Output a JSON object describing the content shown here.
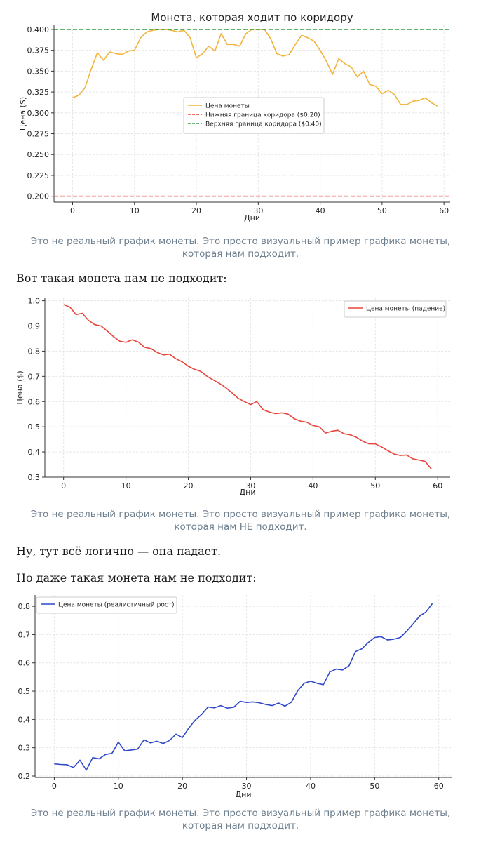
{
  "colors": {
    "yellow": "#f2b43a",
    "red": "#e8453c",
    "green": "#2e9e3e",
    "blue": "#2f49c8",
    "caption": "#6e7f8e",
    "text": "#1a1a1a"
  },
  "captions": {
    "c1_line1": "Это не реальный график монеты. Это просто визуальный пример графика монеты,",
    "c1_line2": "которая нам подходит.",
    "c2_line1": "Это не реальный график монеты. Это просто визуальный пример графика монеты,",
    "c2_line2": "которая нам НЕ подходит.",
    "c3_line1": "Это не реальный график монеты. Это просто визуальный пример графика монеты,",
    "c3_line2": "которая нам подходит."
  },
  "paragraphs": {
    "p1": "Вот такая монета нам не подходит:",
    "p2": "Ну, тут всё логично — она падает.",
    "p3": "Но даже такая монета нам не подходит:"
  },
  "chart_data": [
    {
      "type": "line",
      "title": "Монета, которая ходит по коридору",
      "xlabel": "Дни",
      "ylabel": "Цена ($)",
      "xlim": [
        -3,
        61
      ],
      "ylim": [
        0.193,
        0.405
      ],
      "xticks": [
        0,
        10,
        20,
        30,
        40,
        50,
        60
      ],
      "yticks": [
        0.2,
        0.225,
        0.25,
        0.275,
        0.3,
        0.325,
        0.35,
        0.375,
        0.4
      ],
      "ytick_labels": [
        "0.200",
        "0.225",
        "0.250",
        "0.275",
        "0.300",
        "0.325",
        "0.350",
        "0.375",
        "0.400"
      ],
      "legend": "center",
      "series": [
        {
          "name": "Цена монеты",
          "color": "#f2b43a",
          "dash": false,
          "x": [
            0,
            1,
            2,
            3,
            4,
            5,
            6,
            7,
            8,
            9,
            10,
            11,
            12,
            13,
            14,
            15,
            16,
            17,
            18,
            19,
            20,
            21,
            22,
            23,
            24,
            25,
            26,
            27,
            28,
            29,
            30,
            31,
            32,
            33,
            34,
            35,
            36,
            37,
            38,
            39,
            40,
            41,
            42,
            43,
            44,
            45,
            46,
            47,
            48,
            49,
            50,
            51,
            52,
            53,
            54,
            55,
            56,
            57,
            58,
            59
          ],
          "values": [
            0.318,
            0.321,
            0.33,
            0.352,
            0.372,
            0.363,
            0.373,
            0.371,
            0.37,
            0.374,
            0.375,
            0.39,
            0.397,
            0.399,
            0.4,
            0.4,
            0.399,
            0.397,
            0.399,
            0.39,
            0.366,
            0.371,
            0.38,
            0.374,
            0.395,
            0.382,
            0.382,
            0.38,
            0.395,
            0.4,
            0.4,
            0.4,
            0.389,
            0.371,
            0.368,
            0.37,
            0.382,
            0.393,
            0.39,
            0.386,
            0.375,
            0.362,
            0.346,
            0.365,
            0.359,
            0.355,
            0.343,
            0.35,
            0.334,
            0.332,
            0.323,
            0.327,
            0.322,
            0.31,
            0.31,
            0.314,
            0.315,
            0.318,
            0.312,
            0.308
          ]
        },
        {
          "name": "Нижняя граница коридора ($0.20)",
          "color": "#e8453c",
          "dash": true,
          "hline": 0.2
        },
        {
          "name": "Верхняя граница коридора ($0.40)",
          "color": "#2e9e3e",
          "dash": true,
          "hline": 0.4
        }
      ]
    },
    {
      "type": "line",
      "title": "",
      "xlabel": "Дни",
      "ylabel": "Цена ($)",
      "xlim": [
        -3,
        62
      ],
      "ylim": [
        0.3,
        1.01
      ],
      "xticks": [
        0,
        10,
        20,
        30,
        40,
        50,
        60
      ],
      "yticks": [
        0.3,
        0.4,
        0.5,
        0.6,
        0.7,
        0.8,
        0.9,
        1.0
      ],
      "ytick_labels": [
        "0.3",
        "0.4",
        "0.5",
        "0.6",
        "0.7",
        "0.8",
        "0.9",
        "1.0"
      ],
      "legend": "top-right",
      "series": [
        {
          "name": "Цена монеты (падение)",
          "color": "#e8453c",
          "dash": false,
          "x": [
            0,
            1,
            2,
            3,
            4,
            5,
            6,
            7,
            8,
            9,
            10,
            11,
            12,
            13,
            14,
            15,
            16,
            17,
            18,
            19,
            20,
            21,
            22,
            23,
            24,
            25,
            26,
            27,
            28,
            29,
            30,
            31,
            32,
            33,
            34,
            35,
            36,
            37,
            38,
            39,
            40,
            41,
            42,
            43,
            44,
            45,
            46,
            47,
            48,
            49,
            50,
            51,
            52,
            53,
            54,
            55,
            56,
            57,
            58,
            59
          ],
          "values": [
            0.985,
            0.975,
            0.945,
            0.95,
            0.922,
            0.905,
            0.9,
            0.88,
            0.858,
            0.84,
            0.835,
            0.845,
            0.836,
            0.815,
            0.81,
            0.795,
            0.785,
            0.788,
            0.77,
            0.758,
            0.74,
            0.728,
            0.72,
            0.7,
            0.686,
            0.672,
            0.655,
            0.635,
            0.613,
            0.6,
            0.588,
            0.6,
            0.568,
            0.558,
            0.552,
            0.555,
            0.55,
            0.532,
            0.522,
            0.518,
            0.505,
            0.5,
            0.475,
            0.482,
            0.486,
            0.472,
            0.468,
            0.458,
            0.442,
            0.432,
            0.432,
            0.42,
            0.405,
            0.392,
            0.386,
            0.388,
            0.373,
            0.368,
            0.362,
            0.332
          ]
        }
      ]
    },
    {
      "type": "line",
      "title": "",
      "xlabel": "Дни",
      "ylabel": "",
      "xlim": [
        -3,
        62
      ],
      "ylim": [
        0.195,
        0.84
      ],
      "xticks": [
        0,
        10,
        20,
        30,
        40,
        50,
        60
      ],
      "yticks": [
        0.2,
        0.3,
        0.4,
        0.5,
        0.6,
        0.7,
        0.8
      ],
      "ytick_labels": [
        "0.2",
        "0.3",
        "0.4",
        "0.5",
        "0.6",
        "0.7",
        "0.8"
      ],
      "legend": "top-left",
      "series": [
        {
          "name": "Цена монеты (реалистичный рост)",
          "color": "#2f49c8",
          "dash": false,
          "x": [
            0,
            1,
            2,
            3,
            4,
            5,
            6,
            7,
            8,
            9,
            10,
            11,
            12,
            13,
            14,
            15,
            16,
            17,
            18,
            19,
            20,
            21,
            22,
            23,
            24,
            25,
            26,
            27,
            28,
            29,
            30,
            31,
            32,
            33,
            34,
            35,
            36,
            37,
            38,
            39,
            40,
            41,
            42,
            43,
            44,
            45,
            46,
            47,
            48,
            49,
            50,
            51,
            52,
            53,
            54,
            55,
            56,
            57,
            58,
            59
          ],
          "values": [
            0.243,
            0.241,
            0.24,
            0.23,
            0.256,
            0.221,
            0.265,
            0.261,
            0.276,
            0.28,
            0.32,
            0.289,
            0.292,
            0.295,
            0.328,
            0.317,
            0.323,
            0.315,
            0.326,
            0.348,
            0.336,
            0.37,
            0.398,
            0.418,
            0.444,
            0.441,
            0.449,
            0.44,
            0.443,
            0.464,
            0.46,
            0.462,
            0.459,
            0.453,
            0.449,
            0.458,
            0.447,
            0.461,
            0.502,
            0.528,
            0.535,
            0.528,
            0.523,
            0.568,
            0.578,
            0.575,
            0.59,
            0.64,
            0.65,
            0.672,
            0.69,
            0.693,
            0.681,
            0.684,
            0.69,
            0.712,
            0.738,
            0.765,
            0.78,
            0.81
          ]
        }
      ]
    }
  ]
}
